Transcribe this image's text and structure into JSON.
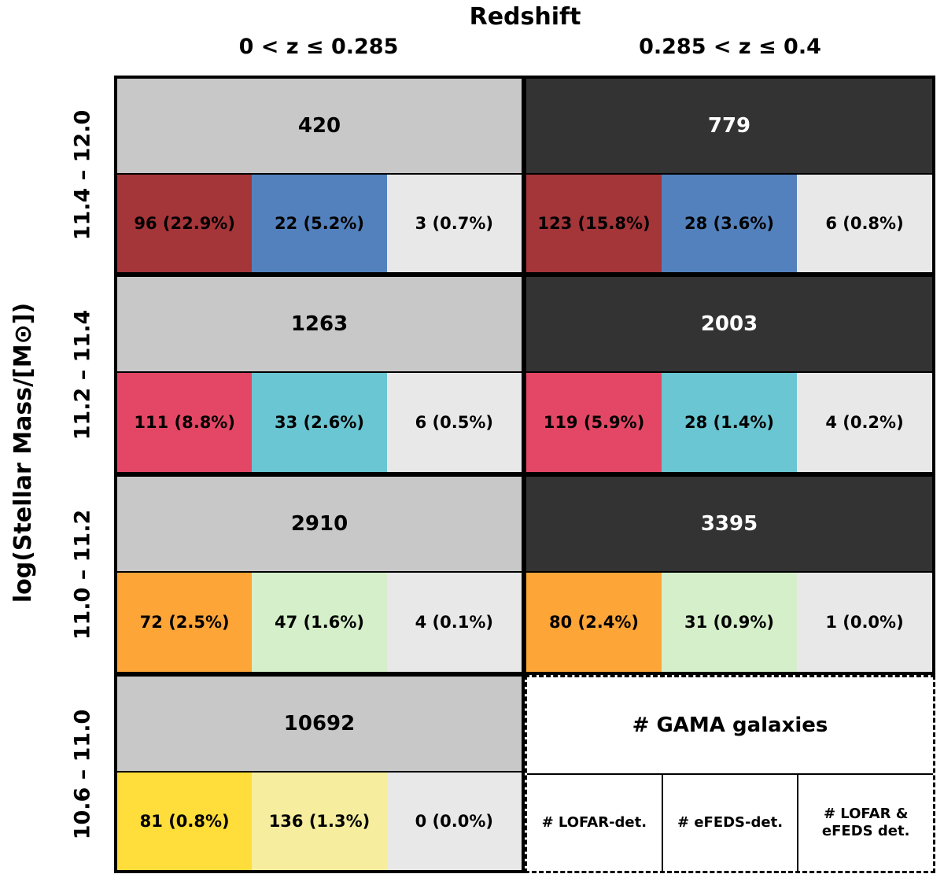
{
  "title": "Redshift",
  "ylabel": "log(Stellar Mass/[M⊙])",
  "columns": [
    "0 < z  ≤ 0.285",
    "0.285 < z  ≤ 0.4"
  ],
  "rows": [
    "11.4 – 12.0",
    "11.2 – 11.4",
    "11.0 – 11.2",
    "10.6 – 11.0"
  ],
  "colors": {
    "low_z_top": "#c8c8c8",
    "high_z_top": "#333333",
    "none": "#e8e8e8",
    "row0_lofar": "#a43539",
    "row0_efeds": "#5381bd",
    "row1_lofar": "#e44765",
    "row1_efeds": "#6ac6d2",
    "row2_lofar": "#fea538",
    "row2_efeds": "#d4efc9",
    "row3_lofar": "#ffdd3a",
    "row3_efeds": "#f6ee9e"
  },
  "chart_data": {
    "type": "table",
    "cells": [
      [
        {
          "total": "420",
          "lofar": "96 (22.9%)",
          "efeds": "22 (5.2%)",
          "both": "3 (0.7%)"
        },
        {
          "total": "779",
          "lofar": "123 (15.8%)",
          "efeds": "28 (3.6%)",
          "both": "6 (0.8%)"
        }
      ],
      [
        {
          "total": "1263",
          "lofar": "111 (8.8%)",
          "efeds": "33 (2.6%)",
          "both": "6 (0.5%)"
        },
        {
          "total": "2003",
          "lofar": "119 (5.9%)",
          "efeds": "28 (1.4%)",
          "both": "4 (0.2%)"
        }
      ],
      [
        {
          "total": "2910",
          "lofar": "72 (2.5%)",
          "efeds": "47 (1.6%)",
          "both": "4 (0.1%)"
        },
        {
          "total": "3395",
          "lofar": "80 (2.4%)",
          "efeds": "31 (0.9%)",
          "both": "1 (0.0%)"
        }
      ],
      [
        {
          "total": "10692",
          "lofar": "81 (0.8%)",
          "efeds": "136 (1.3%)",
          "both": "0 (0.0%)"
        }
      ]
    ]
  },
  "legend": {
    "top": "# GAMA galaxies",
    "lofar": "# LOFAR-det.",
    "efeds": "# eFEDS-det.",
    "both_line1": "# LOFAR &",
    "both_line2": "eFEDS det."
  }
}
